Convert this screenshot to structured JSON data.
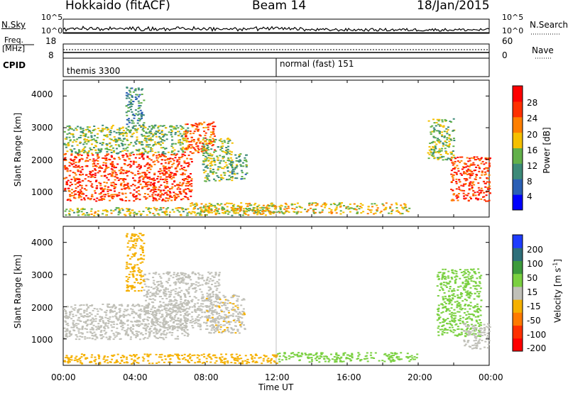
{
  "header": {
    "station": "Hokkaido (fitACF)",
    "beam": "Beam 14",
    "date": "18/Jan/2015"
  },
  "top_panels": {
    "nsky_label": "N.Sky",
    "nsky_ticks": [
      "10^5",
      "10^0"
    ],
    "nsearch_label": "N.Search",
    "nsearch_ticks": [
      "10^5",
      "10^0"
    ],
    "freq_label_top": "Freq.",
    "freq_label_unit": "[MHz]",
    "freq_ticks": [
      "18",
      "8"
    ],
    "nave_label": "Nave",
    "nave_ticks": [
      "60",
      "0"
    ],
    "cpid_label": "CPID",
    "cpid_segments": [
      {
        "name": "themis 3300",
        "start_hour": 0,
        "end_hour": 12
      },
      {
        "name": "normal (fast) 151",
        "start_hour": 12,
        "end_hour": 24
      }
    ]
  },
  "axes": {
    "x_label": "Time UT",
    "x_ticks": [
      "00:00",
      "04:00",
      "08:00",
      "12:00",
      "16:00",
      "20:00",
      "00:00"
    ],
    "y_label": "Slant Range [km]",
    "y_ticks": [
      "1000",
      "2000",
      "3000",
      "4000"
    ]
  },
  "chart_data": [
    {
      "type": "heatmap",
      "title": "",
      "xlabel": "Time UT",
      "ylabel": "Slant Range [km]",
      "xlim": [
        0,
        24
      ],
      "ylim": [
        180,
        4500
      ],
      "colorbar": {
        "label": "Power [dB]",
        "tick_labels": [
          "4",
          "8",
          "12",
          "16",
          "20",
          "24",
          "28"
        ],
        "colors": [
          "#0000ff",
          "#2a5fb5",
          "#3c8a78",
          "#62b04a",
          "#f5c000",
          "#ff7f00",
          "#ff3000",
          "#ff0000"
        ]
      },
      "regions": [
        {
          "t0": 0.0,
          "t1": 7.2,
          "r0": 700,
          "r1": 2200,
          "level": 26
        },
        {
          "t0": 0.0,
          "t1": 7.0,
          "r0": 2200,
          "r1": 3100,
          "level": 14
        },
        {
          "t0": 3.5,
          "t1": 4.5,
          "r0": 3100,
          "r1": 4300,
          "level": 10
        },
        {
          "t0": 6.8,
          "t1": 8.5,
          "r0": 2200,
          "r1": 3200,
          "level": 24
        },
        {
          "t0": 7.8,
          "t1": 9.5,
          "r0": 1300,
          "r1": 2700,
          "level": 14
        },
        {
          "t0": 9.4,
          "t1": 10.3,
          "r0": 1400,
          "r1": 2200,
          "level": 12
        },
        {
          "t0": 0.0,
          "t1": 12.0,
          "r0": 250,
          "r1": 500,
          "level": 16
        },
        {
          "t0": 7.0,
          "t1": 19.5,
          "r0": 300,
          "r1": 650,
          "level": 18
        },
        {
          "t0": 20.5,
          "t1": 22.0,
          "r0": 2000,
          "r1": 3300,
          "level": 14
        },
        {
          "t0": 21.8,
          "t1": 24.0,
          "r0": 700,
          "r1": 2100,
          "level": 26
        }
      ]
    },
    {
      "type": "heatmap",
      "title": "",
      "xlabel": "Time UT",
      "ylabel": "Slant Range [km]",
      "xlim": [
        0,
        24
      ],
      "ylim": [
        180,
        4500
      ],
      "colorbar": {
        "label": "Velocity [m s",
        "label_sup": "-1",
        "label_tail": "]",
        "tick_labels": [
          "200",
          "100",
          "50",
          "15",
          "-15",
          "-50",
          "-100",
          "-200"
        ],
        "colors": [
          "#1e3cff",
          "#2e6f7a",
          "#3c9a3c",
          "#7ad040",
          "#c0c0b8",
          "#f5b000",
          "#ff7a00",
          "#ff3000",
          "#ff0000"
        ]
      },
      "regions": [
        {
          "t0": 0.0,
          "t1": 7.0,
          "r0": 1000,
          "r1": 2100,
          "level": 0
        },
        {
          "t0": 4.5,
          "t1": 8.8,
          "r0": 1300,
          "r1": 3100,
          "level": 0
        },
        {
          "t0": 8.0,
          "t1": 10.2,
          "r0": 1200,
          "r1": 2400,
          "level": -5
        },
        {
          "t0": 3.5,
          "t1": 4.5,
          "r0": 2500,
          "r1": 4300,
          "level": -30
        },
        {
          "t0": 0.0,
          "t1": 12.0,
          "r0": 250,
          "r1": 550,
          "level": -30
        },
        {
          "t0": 12.0,
          "t1": 20.0,
          "r0": 300,
          "r1": 600,
          "level": 30
        },
        {
          "t0": 21.0,
          "t1": 23.5,
          "r0": 1100,
          "r1": 3200,
          "level": 35
        },
        {
          "t0": 22.5,
          "t1": 24.0,
          "r0": 700,
          "r1": 1500,
          "level": 0
        }
      ]
    }
  ]
}
